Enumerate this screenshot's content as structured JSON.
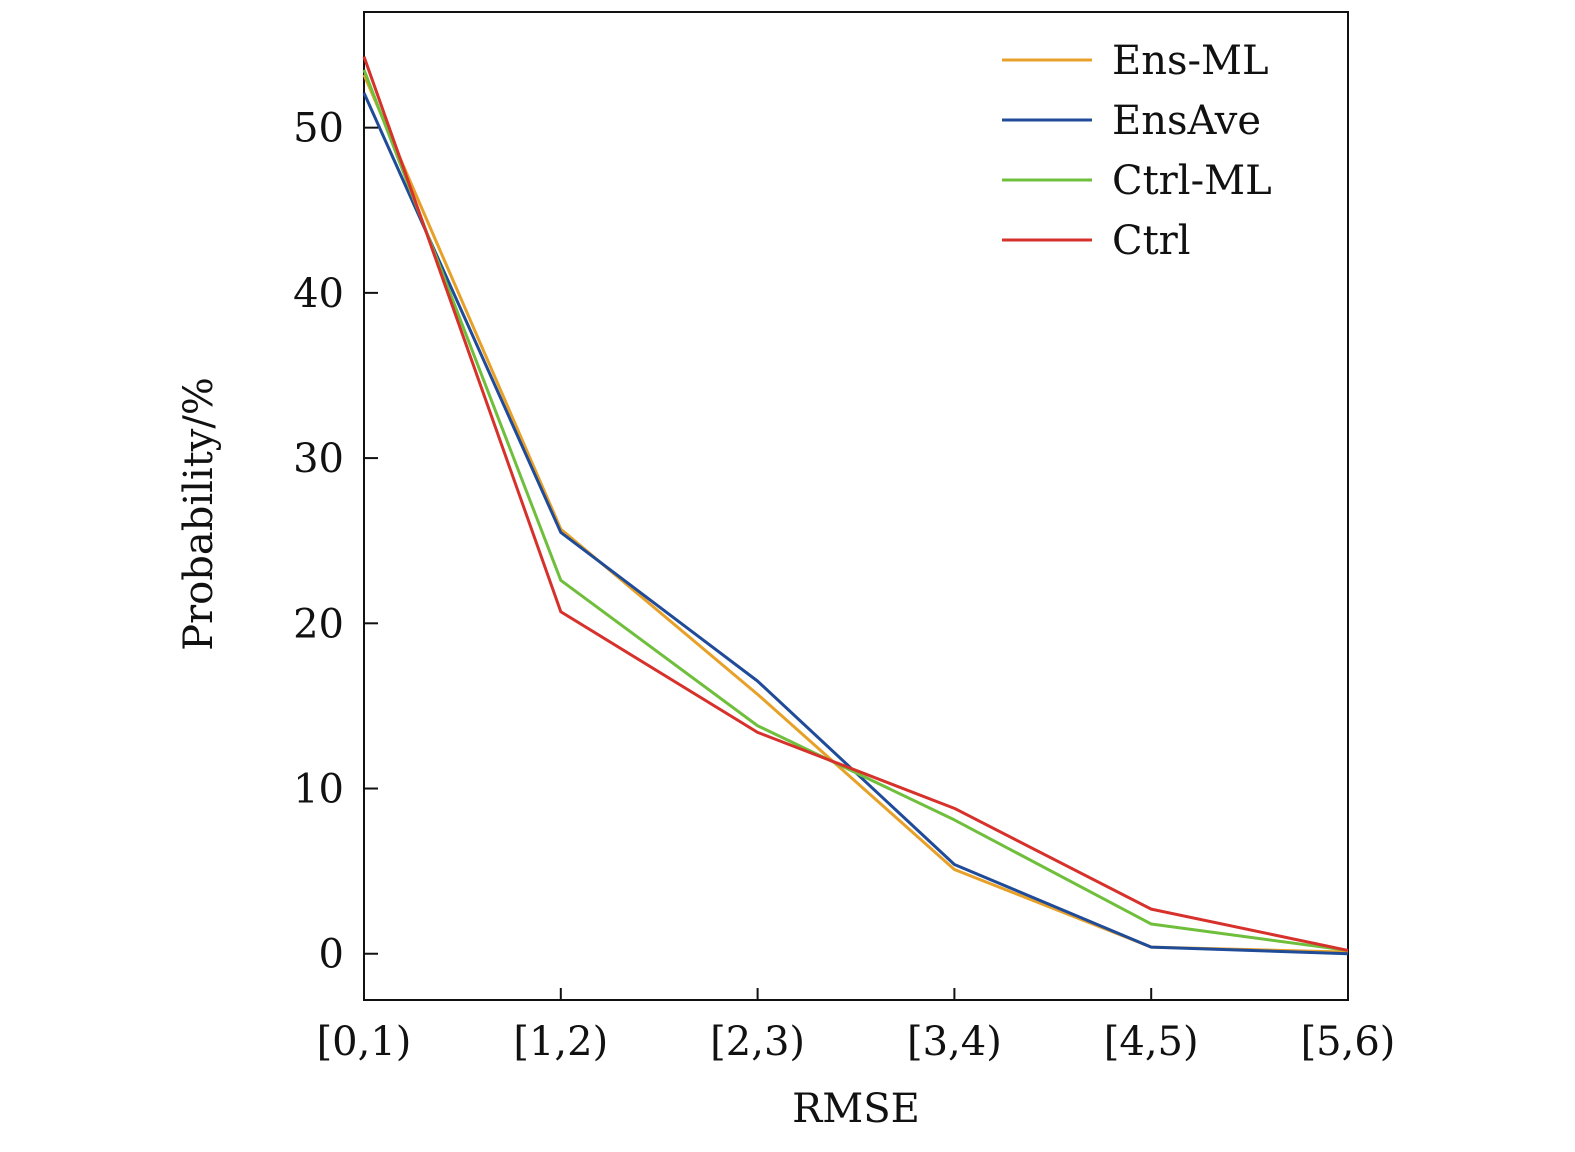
{
  "chart_data": {
    "type": "line",
    "xlabel": "RMSE",
    "ylabel": "Probability/%",
    "categories": [
      "[0,1)",
      "[1,2)",
      "[2,3)",
      "[3,4)",
      "[4,5)",
      "[5,6)"
    ],
    "ylim": [
      -2.8,
      57
    ],
    "yticks": [
      0,
      10,
      20,
      30,
      40,
      50
    ],
    "grid": false,
    "legend_position": "top-right",
    "series": [
      {
        "name": "Ens-ML",
        "color": "#e8a128",
        "values": [
          53.2,
          25.7,
          15.7,
          5.1,
          0.4,
          0.1
        ]
      },
      {
        "name": "EnsAve",
        "color": "#1f4b99",
        "values": [
          52.1,
          25.5,
          16.5,
          5.4,
          0.4,
          0.0
        ]
      },
      {
        "name": "Ctrl-ML",
        "color": "#6fbf3d",
        "values": [
          53.5,
          22.6,
          13.8,
          8.1,
          1.8,
          0.2
        ]
      },
      {
        "name": "Ctrl",
        "color": "#d7312b",
        "values": [
          54.3,
          20.7,
          13.4,
          8.8,
          2.7,
          0.2
        ]
      }
    ]
  }
}
